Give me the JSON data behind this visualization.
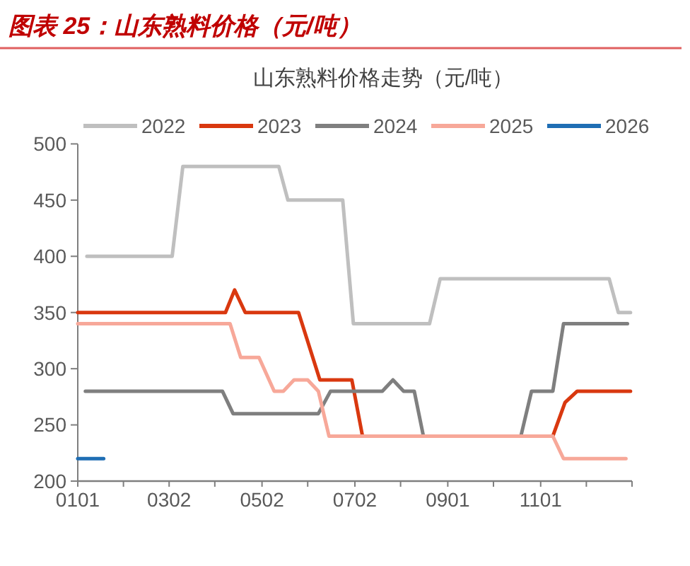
{
  "chart_data": {
    "type": "line",
    "title": "图表 25：山东熟料价格（元/吨）",
    "subtitle": "山东熟料价格走势（元/吨）",
    "xlim": [
      "--01-01",
      "--12-31"
    ],
    "xticks": [
      {
        "value": "--01-01",
        "label": "0101"
      },
      {
        "value": "--01-31",
        "label": null
      },
      {
        "value": "--03-02",
        "label": "0302"
      },
      {
        "value": "--04-01",
        "label": null
      },
      {
        "value": "--05-02",
        "label": "0502"
      },
      {
        "value": "--06-01",
        "label": null
      },
      {
        "value": "--07-02",
        "label": "0702"
      },
      {
        "value": "--08-01",
        "label": null
      },
      {
        "value": "--09-01",
        "label": "0901"
      },
      {
        "value": "--10-01",
        "label": null
      },
      {
        "value": "--11-01",
        "label": "1101"
      },
      {
        "value": "--12-01",
        "label": null
      },
      {
        "value": "--12-31",
        "label": null
      }
    ],
    "ylim": [
      200,
      500
    ],
    "yticks": [
      200,
      250,
      300,
      350,
      400,
      450,
      500
    ],
    "grid": false,
    "legend": "top",
    "line_style": "solid",
    "series": [
      {
        "name": "2022",
        "color": "#bfbfbf",
        "x": [
          "--01-07",
          "--03-04",
          "--03-11",
          "--05-13",
          "--05-19",
          "--06-24",
          "--07-01",
          "--08-20",
          "--08-27",
          "--12-16",
          "--12-22",
          "--12-30"
        ],
        "values": [
          400,
          400,
          480,
          480,
          450,
          450,
          340,
          340,
          380,
          380,
          350,
          350
        ]
      },
      {
        "name": "2023",
        "color": "#d9380f",
        "x": [
          "--01-01",
          "--04-08",
          "--04-14",
          "--04-21",
          "--05-26",
          "--06-09",
          "--06-30",
          "--07-07",
          "--11-09",
          "--11-17",
          "--11-25",
          "--12-30"
        ],
        "values": [
          350,
          350,
          370,
          350,
          350,
          290,
          290,
          240,
          240,
          270,
          280,
          280
        ]
      },
      {
        "name": "2024",
        "color": "#7f7f7f",
        "x": [
          "--01-06",
          "--04-06",
          "--04-13",
          "--06-08",
          "--06-16",
          "--07-20",
          "--07-27",
          "--08-03",
          "--08-10",
          "--08-16",
          "--10-19",
          "--10-26",
          "--11-09",
          "--11-16",
          "--12-28"
        ],
        "values": [
          280,
          280,
          260,
          260,
          280,
          280,
          290,
          280,
          280,
          240,
          240,
          280,
          280,
          340,
          340
        ]
      },
      {
        "name": "2025",
        "color": "#f7a899",
        "x": [
          "--01-01",
          "--04-11",
          "--04-18",
          "--04-30",
          "--05-10",
          "--05-16",
          "--05-23",
          "--06-01",
          "--06-08",
          "--06-15",
          "--11-09",
          "--11-16",
          "--12-27"
        ],
        "values": [
          340,
          340,
          310,
          310,
          280,
          280,
          290,
          290,
          280,
          240,
          240,
          220,
          220
        ]
      },
      {
        "name": "2026",
        "color": "#1f6eb4",
        "x": [
          "--01-01",
          "--01-18"
        ],
        "values": [
          220,
          220
        ]
      }
    ]
  }
}
